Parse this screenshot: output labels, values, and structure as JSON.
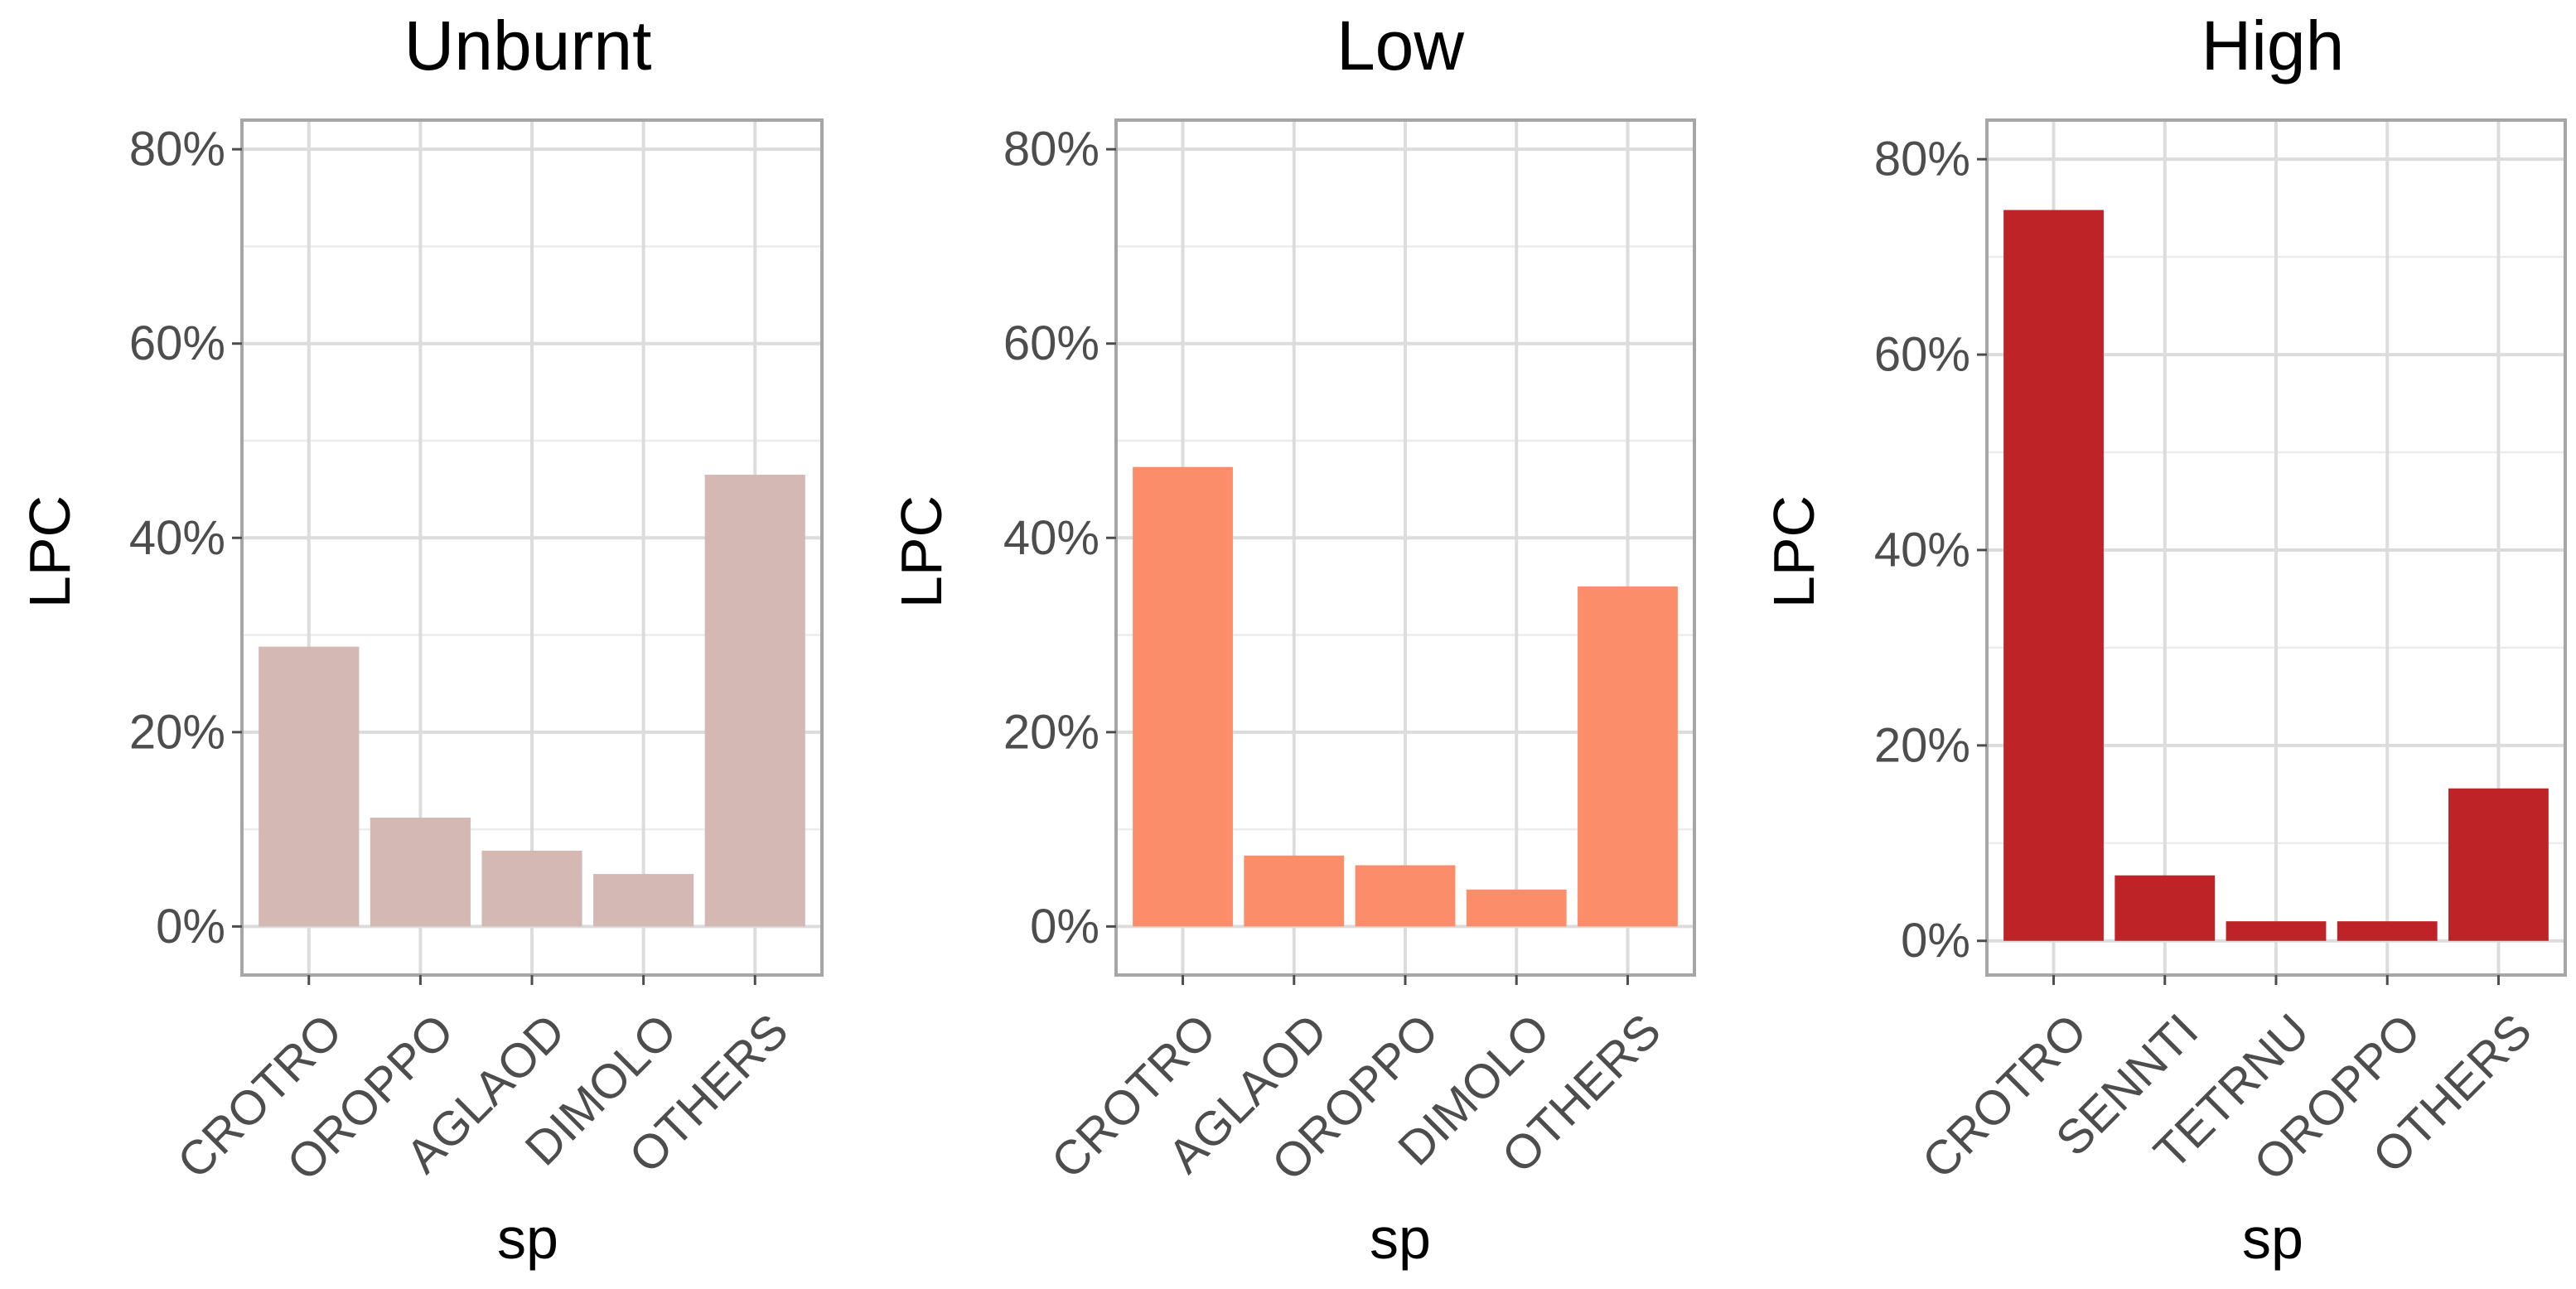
{
  "chart_data": [
    {
      "type": "bar",
      "title": "Unburnt",
      "xlabel": "sp",
      "ylabel": "LPC",
      "categories": [
        "CROTRO",
        "OROPPO",
        "AGLAOD",
        "DIMOLO",
        "OTHERS"
      ],
      "values": [
        0.288,
        0.112,
        0.078,
        0.054,
        0.465
      ],
      "color": "#d4b8b4",
      "ylim": [
        -0.05,
        0.83
      ],
      "yticks": [
        0,
        0.2,
        0.4,
        0.6,
        0.8
      ],
      "ytick_labels": [
        "0%",
        "20%",
        "40%",
        "60%",
        "80%"
      ],
      "grid": true
    },
    {
      "type": "bar",
      "title": "Low",
      "xlabel": "sp",
      "ylabel": "LPC",
      "categories": [
        "CROTRO",
        "AGLAOD",
        "OROPPO",
        "DIMOLO",
        "OTHERS"
      ],
      "values": [
        0.473,
        0.073,
        0.063,
        0.038,
        0.35
      ],
      "color": "#fc8d6a",
      "ylim": [
        -0.05,
        0.83
      ],
      "yticks": [
        0,
        0.2,
        0.4,
        0.6,
        0.8
      ],
      "ytick_labels": [
        "0%",
        "20%",
        "40%",
        "60%",
        "80%"
      ],
      "grid": true
    },
    {
      "type": "bar",
      "title": "High",
      "xlabel": "sp",
      "ylabel": "LPC",
      "categories": [
        "CROTRO",
        "SENNTI",
        "TETRNU",
        "OROPPO",
        "OTHERS"
      ],
      "values": [
        0.748,
        0.067,
        0.02,
        0.02,
        0.156
      ],
      "color": "#be2327",
      "ylim": [
        -0.035,
        0.84
      ],
      "yticks": [
        0,
        0.2,
        0.4,
        0.6,
        0.8
      ],
      "ytick_labels": [
        "0%",
        "20%",
        "40%",
        "60%",
        "80%"
      ],
      "grid": true
    }
  ]
}
